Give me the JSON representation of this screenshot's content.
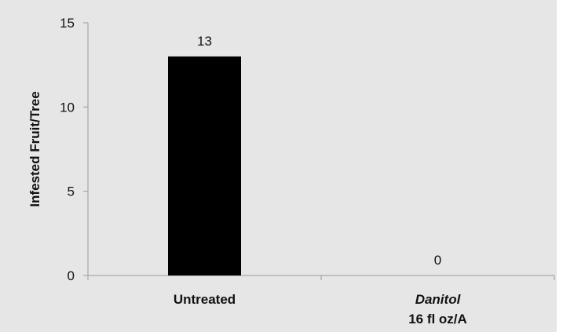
{
  "colors": {
    "background": "#e6e6e6",
    "bar": "#000000",
    "axis": "#9a9a9a",
    "text": "#111111"
  },
  "chart_data": {
    "type": "bar",
    "title": "",
    "xlabel": "",
    "ylabel": "Infested Fruit/Tree",
    "categories": [
      "Untreated",
      "Danitol 16 fl oz/A"
    ],
    "category_labels": [
      {
        "line1": "Untreated",
        "line1_italic": false,
        "line2": ""
      },
      {
        "line1": "Danitol",
        "line1_italic": true,
        "line2": "16 fl oz/A"
      }
    ],
    "values": [
      13,
      0
    ],
    "data_labels": [
      "13",
      "0"
    ],
    "ylim": [
      0,
      15
    ],
    "yticks": [
      0,
      5,
      10,
      15
    ],
    "grid": false,
    "legend": "none"
  }
}
